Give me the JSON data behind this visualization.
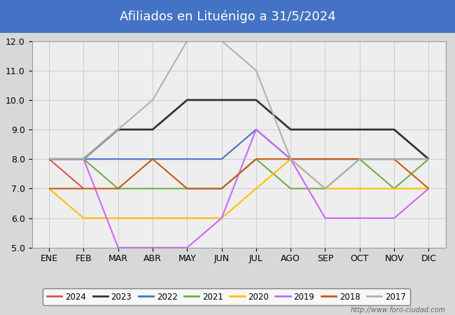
{
  "title": "Afiliados en Lituénigo a 31/5/2024",
  "title_color": "white",
  "title_bg_color": "#4472c4",
  "ylim": [
    5.0,
    12.0
  ],
  "yticks": [
    5.0,
    6.0,
    7.0,
    8.0,
    9.0,
    10.0,
    11.0,
    12.0
  ],
  "months": [
    "ENE",
    "FEB",
    "MAR",
    "ABR",
    "MAY",
    "JUN",
    "JUL",
    "AGO",
    "SEP",
    "OCT",
    "NOV",
    "DIC"
  ],
  "watermark": "http://www.foro-ciudad.com",
  "series": [
    {
      "label": "2024",
      "color": "#e05050",
      "linewidth": 1.5,
      "data": [
        8,
        7,
        null,
        null,
        null,
        null,
        null,
        null,
        null,
        null,
        null,
        null
      ]
    },
    {
      "label": "2023",
      "color": "#333333",
      "linewidth": 2.0,
      "data": [
        8,
        8,
        9,
        9,
        10,
        10,
        10,
        9,
        9,
        9,
        9,
        8
      ]
    },
    {
      "label": "2022",
      "color": "#4472c4",
      "linewidth": 1.5,
      "data": [
        8,
        8,
        8,
        8,
        8,
        8,
        9,
        8,
        8,
        8,
        8,
        8
      ]
    },
    {
      "label": "2021",
      "color": "#70ad47",
      "linewidth": 1.5,
      "data": [
        8,
        8,
        7,
        7,
        7,
        7,
        8,
        7,
        7,
        8,
        7,
        8
      ]
    },
    {
      "label": "2020",
      "color": "#ffc000",
      "linewidth": 1.5,
      "data": [
        7,
        6,
        6,
        6,
        6,
        6,
        7,
        8,
        7,
        7,
        7,
        7
      ]
    },
    {
      "label": "2019",
      "color": "#cc66ff",
      "linewidth": 1.5,
      "data": [
        8,
        8,
        5,
        5,
        5,
        6,
        9,
        8,
        6,
        6,
        6,
        7
      ]
    },
    {
      "label": "2018",
      "color": "#c55a11",
      "linewidth": 1.5,
      "data": [
        7,
        7,
        7,
        8,
        7,
        7,
        8,
        8,
        8,
        8,
        8,
        7
      ]
    },
    {
      "label": "2017",
      "color": "#b0b0b0",
      "linewidth": 1.5,
      "data": [
        8,
        8,
        9,
        10,
        12,
        12,
        11,
        8,
        7,
        8,
        8,
        8
      ]
    }
  ],
  "grid_color": "#cccccc",
  "outer_bg_color": "#d8d8d8",
  "plot_bg_color": "#eeeeee",
  "legend_fontsize": 8.5,
  "tick_fontsize": 9
}
